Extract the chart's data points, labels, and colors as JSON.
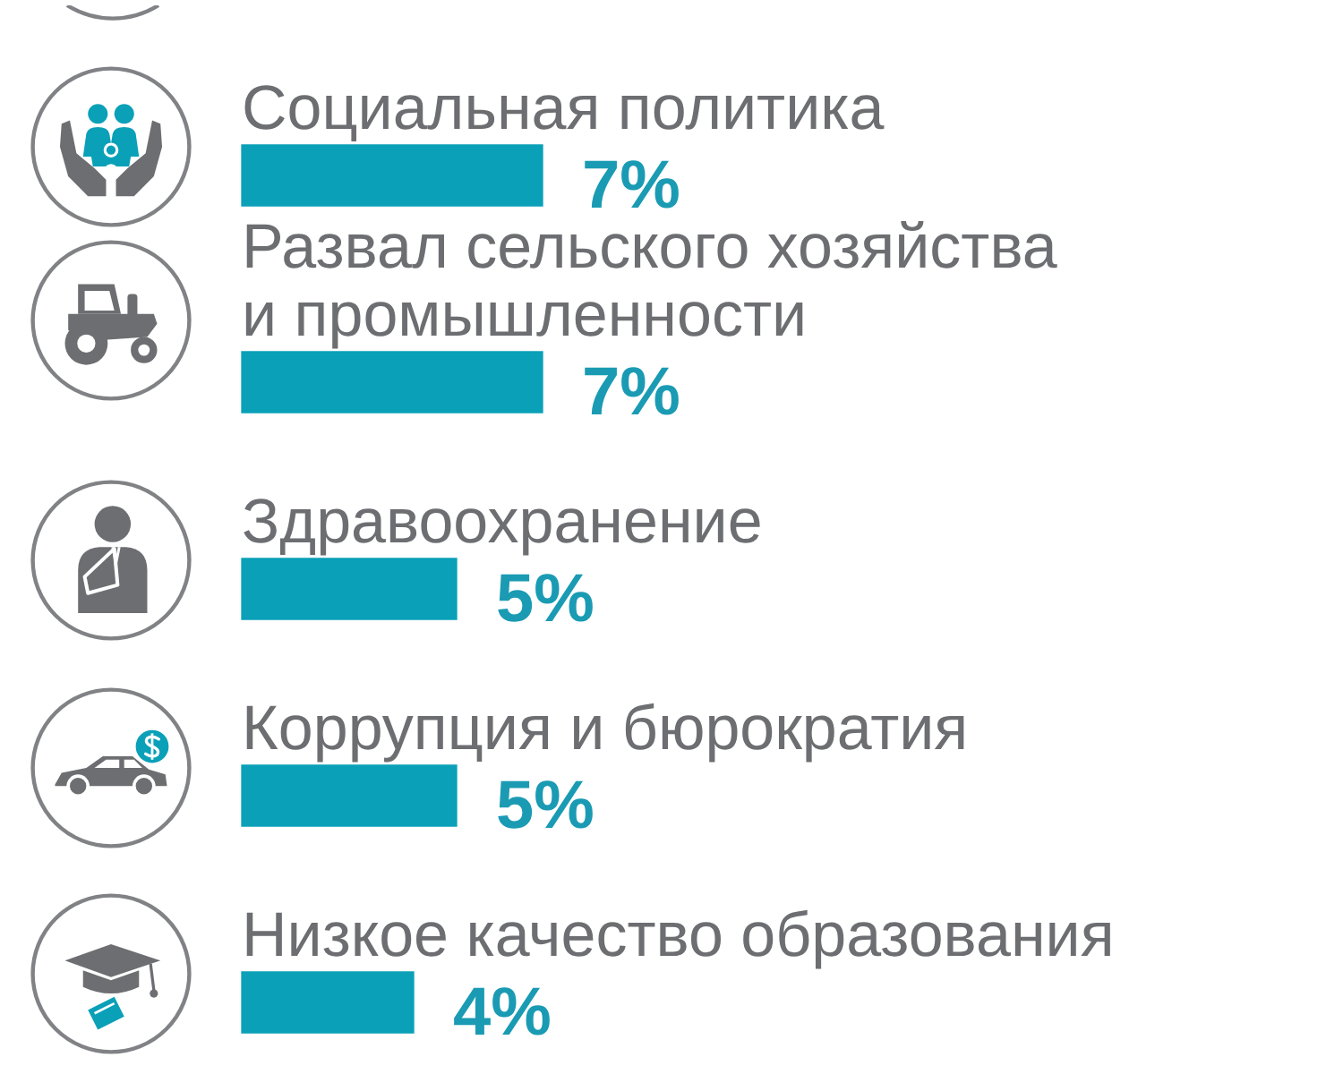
{
  "chart_data": {
    "type": "bar",
    "orientation": "horizontal",
    "categories": [
      "Социальная политика",
      "Развал сельского хозяйства\nи промышленности",
      "Здравоохранение",
      "Коррупция и бюрократия",
      "Низкое качество образования"
    ],
    "values": [
      7,
      7,
      5,
      5,
      4
    ],
    "value_labels": [
      "7%",
      "7%",
      "5%",
      "5%",
      "4%"
    ],
    "color": "#0aa0b8"
  }
}
